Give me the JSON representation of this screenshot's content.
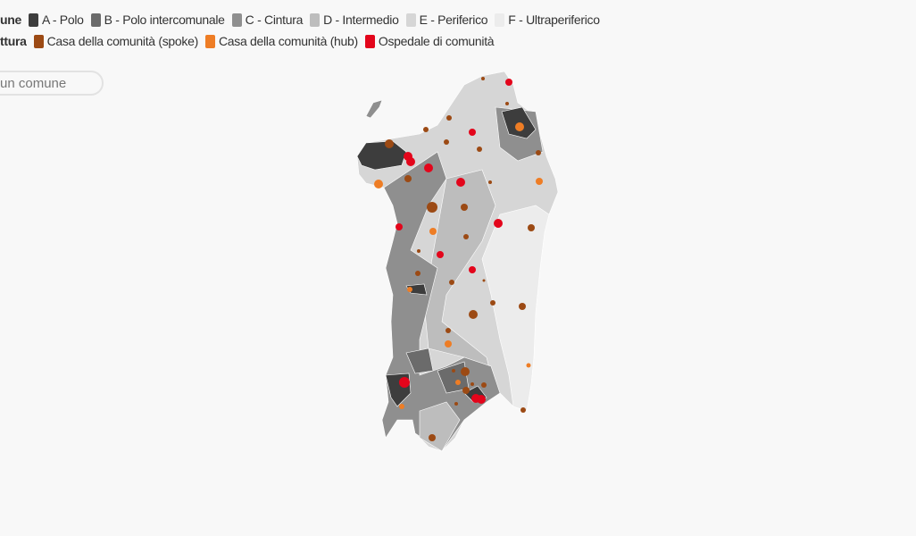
{
  "legend": {
    "area": {
      "title": "une",
      "items": [
        {
          "label": "A - Polo",
          "color": "#3d3d3d"
        },
        {
          "label": "B - Polo intercomunale",
          "color": "#6b6b6b"
        },
        {
          "label": "C - Cintura",
          "color": "#8f8f8f"
        },
        {
          "label": "D - Intermedio",
          "color": "#bdbdbd"
        },
        {
          "label": "E - Periferico",
          "color": "#d6d6d6"
        },
        {
          "label": "F - Ultraperiferico",
          "color": "#ececec"
        }
      ]
    },
    "facility": {
      "title": "ttura",
      "items": [
        {
          "label": "Casa della comunità (spoke)",
          "color": "#9c4a14"
        },
        {
          "label": "Casa della comunità (hub)",
          "color": "#ee7d25"
        },
        {
          "label": "Ospedale di comunità",
          "color": "#e3051b"
        }
      ]
    }
  },
  "search": {
    "placeholder": "un comune"
  }
}
